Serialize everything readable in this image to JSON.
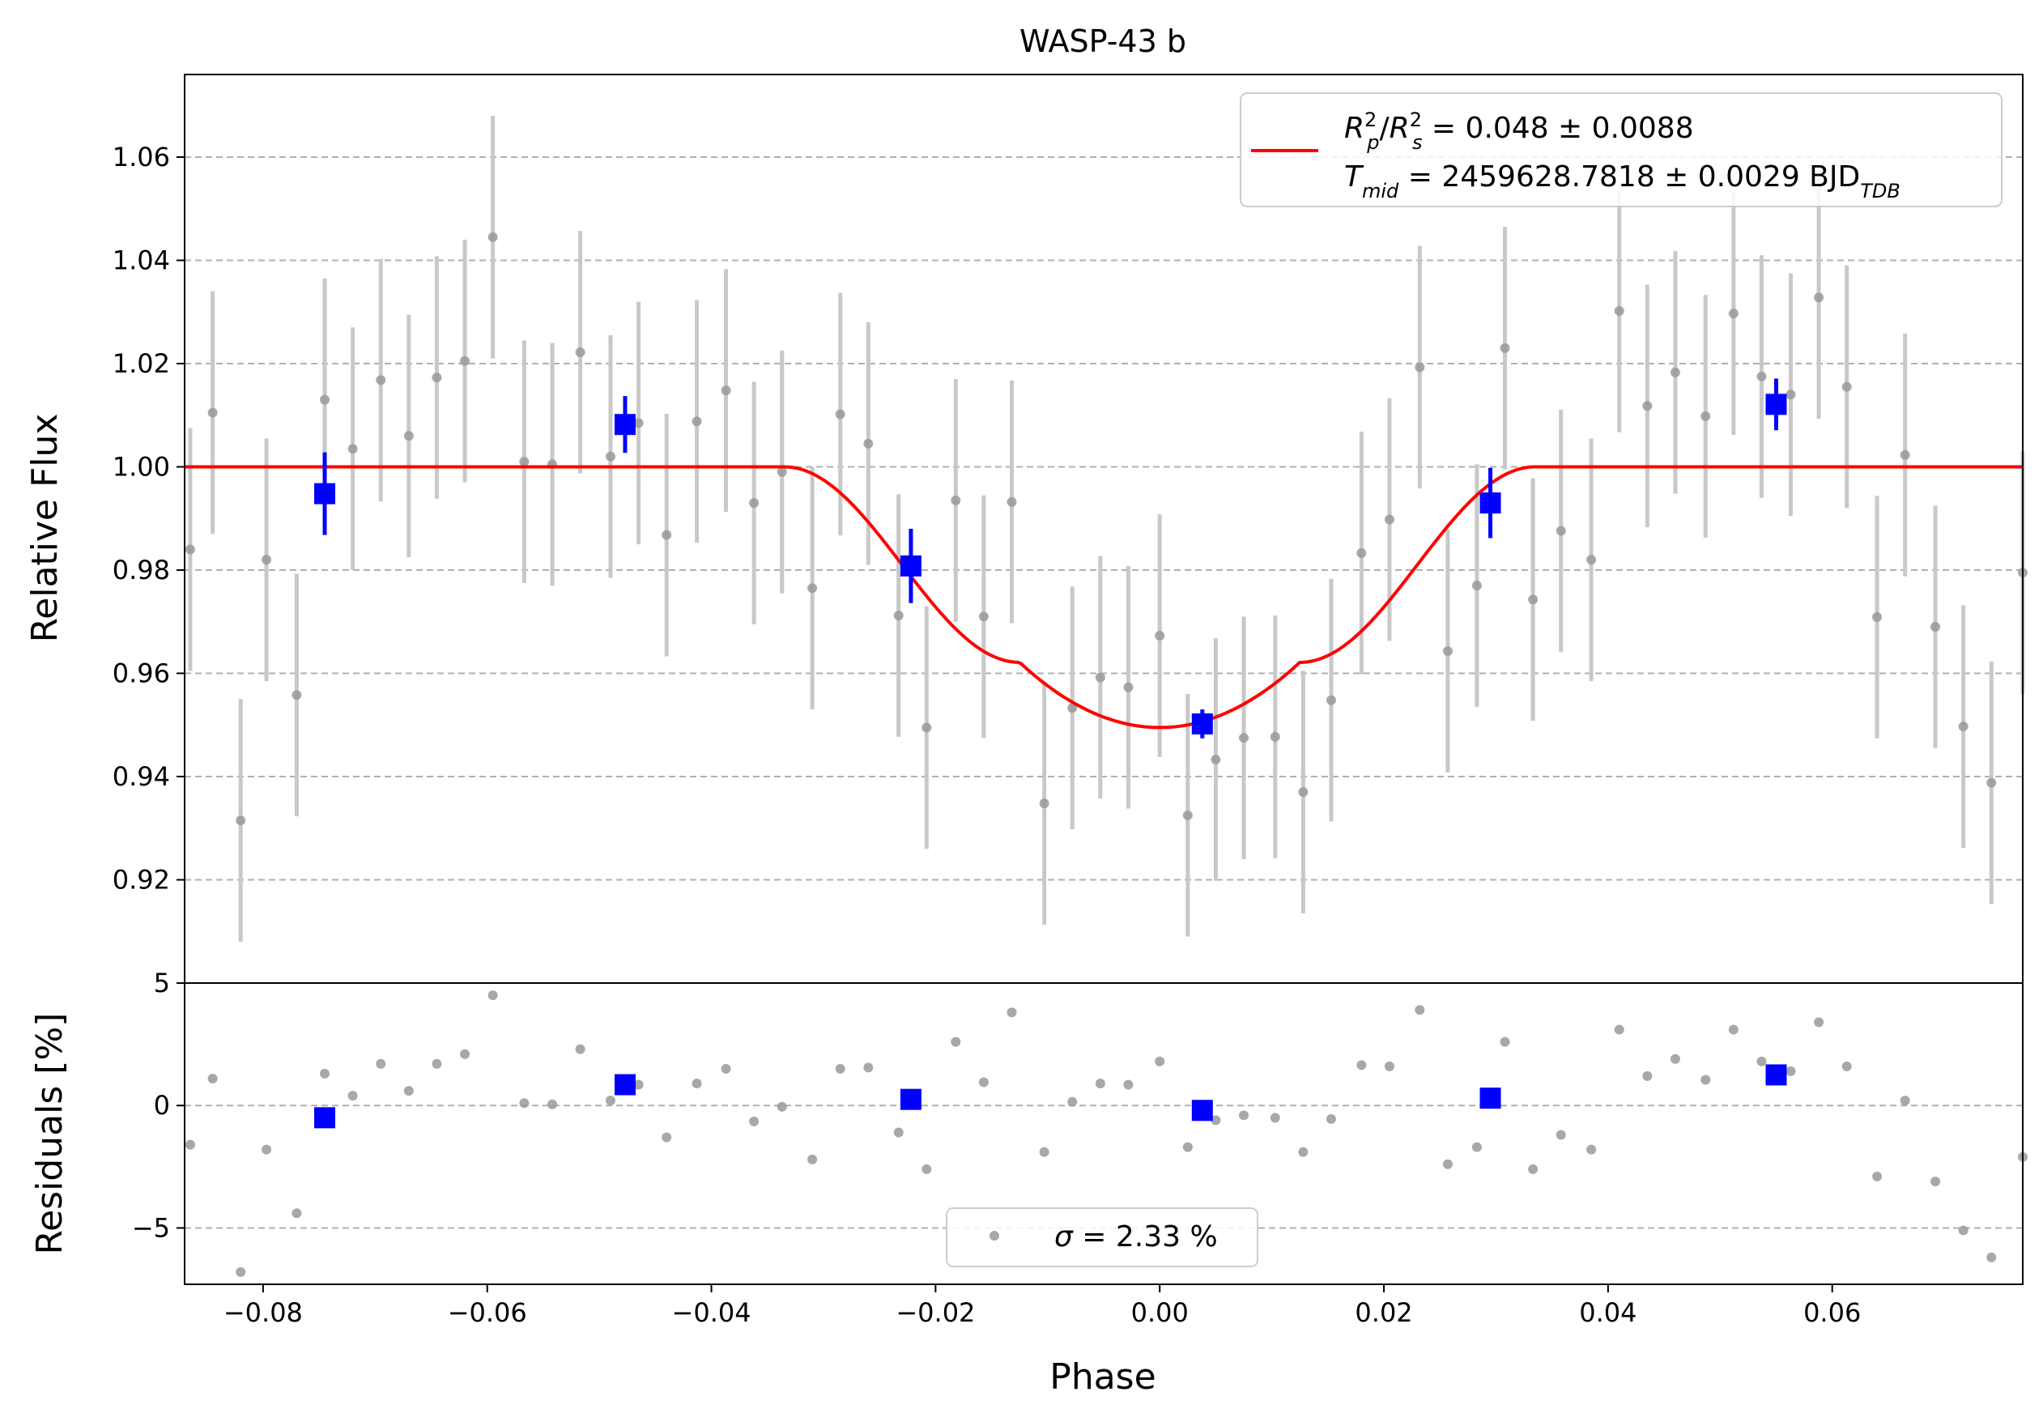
{
  "chart_data": {
    "type": "scatter",
    "title": "WASP-43 b",
    "xlabel": "Phase",
    "x_tick_labels": [
      "−0.08",
      "−0.06",
      "−0.04",
      "−0.02",
      "0.00",
      "0.02",
      "0.04",
      "0.06"
    ],
    "xlim": [
      -0.087,
      0.077
    ],
    "panels": {
      "top": {
        "ylabel": "Relative Flux",
        "ylim": [
          0.9,
          1.076
        ],
        "yticks": [
          0.92,
          0.94,
          0.96,
          0.98,
          1.0,
          1.02,
          1.04,
          1.06
        ],
        "y_tick_labels": [
          "0.92",
          "0.94",
          "0.96",
          "0.98",
          "1.00",
          "1.02",
          "1.04",
          "1.06"
        ],
        "grid": "y-dashed",
        "legend": {
          "placement": "top-right",
          "model_label": "R_p²/R_s² = 0.048 ± 0.0088",
          "model_label_parts": {
            "sym1": "R",
            "sub1": "p",
            "sup1": "2",
            "sep": "/",
            "sym2": "R",
            "sub2": "s",
            "sup2": "2",
            "rest": " = 0.048 ± 0.0088"
          },
          "tmid_label": "T_mid = 2459628.7818 ± 0.0029 BJD_TDB",
          "tmid_label_parts": {
            "sym": "T",
            "sub": "mid",
            "rest": " = 2459628.7818 ± 0.0029 BJD",
            "unit_sub": "TDB"
          }
        }
      },
      "bottom": {
        "ylabel": "Residuals [%]",
        "ylim": [
          -7.3,
          5
        ],
        "yticks": [
          -5,
          0,
          5
        ],
        "y_tick_labels": [
          "−5",
          "0",
          "5"
        ],
        "grid": "y-dashed",
        "legend": {
          "placement": "bottom-center",
          "label": "σ = 2.33 %",
          "symbol": "σ",
          "rest": " = 2.33 %"
        }
      }
    },
    "series": [
      {
        "kind": "raw-data",
        "color": "#999999",
        "errorbar_color": "#c8c8c8",
        "x": [
          -0.0865,
          -0.0845,
          -0.082,
          -0.0797,
          -0.077,
          -0.0745,
          -0.072,
          -0.0695,
          -0.067,
          -0.0645,
          -0.062,
          -0.0595,
          -0.0567,
          -0.0542,
          -0.0517,
          -0.049,
          -0.0465,
          -0.044,
          -0.0413,
          -0.0387,
          -0.0362,
          -0.0337,
          -0.031,
          -0.0285,
          -0.026,
          -0.0233,
          -0.0208,
          -0.0182,
          -0.0157,
          -0.0132,
          -0.0103,
          -0.0078,
          -0.0053,
          -0.0028,
          0.0,
          0.0025,
          0.005,
          0.0075,
          0.0103,
          0.0128,
          0.0153,
          0.018,
          0.0205,
          0.0232,
          0.0257,
          0.0283,
          0.0308,
          0.0333,
          0.0358,
          0.0385,
          0.041,
          0.0435,
          0.046,
          0.0487,
          0.0512,
          0.0537,
          0.0563,
          0.0588,
          0.0613,
          0.064,
          0.0665,
          0.0692,
          0.0717,
          0.0742,
          0.077
        ],
        "y": [
          0.984,
          1.0105,
          0.9315,
          0.982,
          0.9558,
          1.013,
          1.0035,
          1.0168,
          1.006,
          1.0173,
          1.0205,
          1.0445,
          1.001,
          1.0005,
          1.0222,
          1.002,
          1.0085,
          0.9868,
          1.0088,
          1.0148,
          0.993,
          0.999,
          0.9765,
          1.0102,
          1.0045,
          0.9712,
          0.9495,
          0.9935,
          0.971,
          0.9932,
          0.9348,
          0.9533,
          0.9592,
          0.9573,
          0.9673,
          0.9325,
          0.9433,
          0.9475,
          0.9477,
          0.937,
          0.9548,
          0.9833,
          0.9898,
          1.0193,
          0.9643,
          0.977,
          1.023,
          0.9743,
          0.9876,
          0.982,
          1.0302,
          1.0118,
          1.0183,
          1.0098,
          1.0297,
          1.0175,
          1.014,
          1.0328,
          1.0155,
          0.9709,
          1.0023,
          0.969,
          0.9497,
          0.9388,
          0.9795
        ],
        "err": [
          0.0235,
          0.0235,
          0.0235,
          0.0235,
          0.0235,
          0.0235,
          0.0235,
          0.0235,
          0.0235,
          0.0235,
          0.0235,
          0.0235,
          0.0235,
          0.0235,
          0.0235,
          0.0235,
          0.0235,
          0.0235,
          0.0235,
          0.0235,
          0.0235,
          0.0235,
          0.0235,
          0.0235,
          0.0235,
          0.0235,
          0.0235,
          0.0235,
          0.0235,
          0.0235,
          0.0235,
          0.0235,
          0.0235,
          0.0235,
          0.0235,
          0.0235,
          0.0235,
          0.0235,
          0.0235,
          0.0235,
          0.0235,
          0.0235,
          0.0235,
          0.0235,
          0.0235,
          0.0235,
          0.0235,
          0.0235,
          0.0235,
          0.0235,
          0.0235,
          0.0235,
          0.0235,
          0.0235,
          0.0235,
          0.0235,
          0.0235,
          0.0235,
          0.0235,
          0.0235,
          0.0235,
          0.0235,
          0.0235,
          0.0235,
          0.0235
        ],
        "residuals": [
          -1.6,
          1.1,
          -6.8,
          -1.8,
          -4.4,
          1.3,
          0.4,
          1.7,
          0.6,
          1.7,
          2.1,
          4.5,
          0.1,
          0.05,
          2.3,
          0.2,
          0.85,
          -1.3,
          0.9,
          1.5,
          -0.65,
          -0.05,
          -2.2,
          1.5,
          1.55,
          -1.1,
          -2.6,
          2.6,
          0.95,
          3.8,
          -1.9,
          0.15,
          0.9,
          0.85,
          1.8,
          -1.7,
          -0.6,
          -0.4,
          -0.5,
          -1.9,
          -0.55,
          1.65,
          1.6,
          3.9,
          -2.4,
          -1.7,
          2.6,
          -2.6,
          -1.2,
          -1.8,
          3.1,
          1.2,
          1.9,
          1.05,
          3.1,
          1.8,
          1.4,
          3.4,
          1.6,
          -2.9,
          0.2,
          -3.1,
          -5.1,
          -6.2,
          -2.1
        ]
      },
      {
        "kind": "binned-data",
        "color": "#0000ff",
        "x": [
          -0.0745,
          -0.0477,
          -0.0222,
          0.0038,
          0.0295,
          0.055
        ],
        "y": [
          0.9948,
          1.0082,
          0.9808,
          0.9502,
          0.993,
          1.0121
        ],
        "err": [
          0.008,
          0.0055,
          0.0072,
          0.0028,
          0.0068,
          0.005
        ],
        "residuals": [
          -0.5,
          0.85,
          0.25,
          -0.2,
          0.3,
          1.25
        ]
      },
      {
        "kind": "model",
        "color": "#ff0000",
        "depth": 0.0505,
        "t1": 0.0335,
        "t2": 0.0125
      }
    ]
  }
}
